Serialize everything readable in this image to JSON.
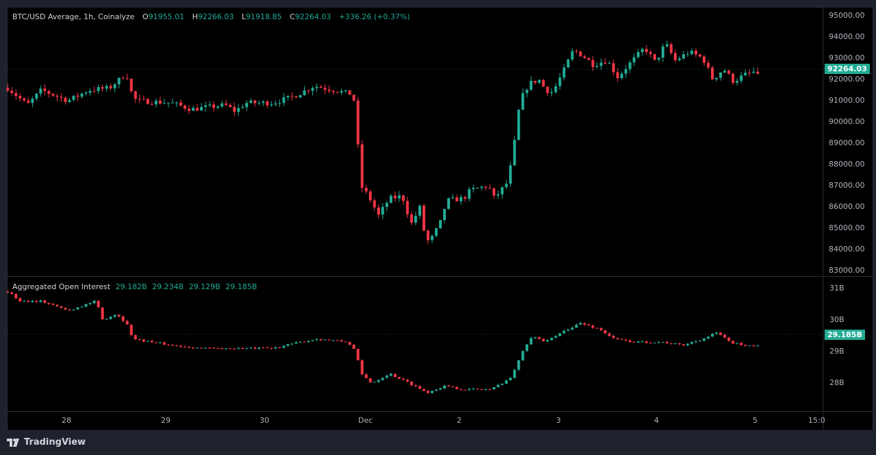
{
  "legend_main": {
    "symbol": "BTC/USD Average, 1h, Coinalyze",
    "o_label": "O",
    "o": "91955.01",
    "h_label": "H",
    "h": "92266.03",
    "l_label": "L",
    "l": "91918.85",
    "c_label": "C",
    "c": "92264.03",
    "change": "+336.26 (+0.37%)"
  },
  "legend_oi": {
    "title": "Aggregated Open Interest",
    "v1": "29.182B",
    "v2": "29.234B",
    "v3": "29.129B",
    "v4": "29.185B"
  },
  "price_axis": [
    "95000.00",
    "94000.00",
    "93000.00",
    "92000.00",
    "91000.00",
    "90000.00",
    "89000.00",
    "88000.00",
    "87000.00",
    "86000.00",
    "85000.00",
    "84000.00",
    "83000.00"
  ],
  "price_tag": "92264.03",
  "oi_axis": [
    "31B",
    "30B",
    "29B",
    "28B"
  ],
  "oi_tag": "29.185B",
  "time_axis": [
    "28",
    "29",
    "30",
    "Dec",
    "2",
    "3",
    "4",
    "5",
    "15:0"
  ],
  "brand": "TradingView",
  "colors": {
    "up": "#22ab94",
    "down": "#f23645",
    "bg": "#000000"
  },
  "chart_data": {
    "type": "candlestick",
    "interval": "1h",
    "price_ylim": [
      83000,
      95000
    ],
    "oi_ylim": [
      27.5,
      31.2
    ],
    "price_anchors_by_day": [
      [
        -0.58,
        91600
      ],
      [
        -0.38,
        90800
      ],
      [
        -0.24,
        91500
      ],
      [
        0.03,
        91000
      ],
      [
        0.24,
        91500
      ],
      [
        0.45,
        91600
      ],
      [
        0.55,
        92000
      ],
      [
        0.62,
        92300
      ],
      [
        0.66,
        91500
      ],
      [
        0.72,
        91000
      ],
      [
        1.07,
        90900
      ],
      [
        1.28,
        90600
      ],
      [
        1.62,
        90800
      ],
      [
        1.72,
        90500
      ],
      [
        1.83,
        90900
      ],
      [
        2.1,
        90900
      ],
      [
        2.31,
        91200
      ],
      [
        2.52,
        91700
      ],
      [
        2.72,
        91500
      ],
      [
        2.9,
        91300
      ],
      [
        2.93,
        90900
      ],
      [
        2.99,
        87000
      ],
      [
        3.07,
        86500
      ],
      [
        3.17,
        85600
      ],
      [
        3.28,
        86400
      ],
      [
        3.41,
        86500
      ],
      [
        3.5,
        85200
      ],
      [
        3.59,
        86000
      ],
      [
        3.62,
        85000
      ],
      [
        3.68,
        84300
      ],
      [
        3.79,
        85200
      ],
      [
        3.86,
        86300
      ],
      [
        4.03,
        86400
      ],
      [
        4.1,
        86800
      ],
      [
        4.28,
        87000
      ],
      [
        4.34,
        86400
      ],
      [
        4.48,
        87200
      ],
      [
        4.55,
        89200
      ],
      [
        4.6,
        91000
      ],
      [
        4.69,
        91800
      ],
      [
        4.79,
        92000
      ],
      [
        4.86,
        91500
      ],
      [
        4.93,
        91400
      ],
      [
        5.03,
        92300
      ],
      [
        5.14,
        93400
      ],
      [
        5.24,
        93100
      ],
      [
        5.34,
        92700
      ],
      [
        5.48,
        92900
      ],
      [
        5.59,
        92100
      ],
      [
        5.66,
        92500
      ],
      [
        5.76,
        93000
      ],
      [
        5.86,
        93500
      ],
      [
        5.97,
        92800
      ],
      [
        6.07,
        93700
      ],
      [
        6.17,
        92900
      ],
      [
        6.31,
        93300
      ],
      [
        6.45,
        93000
      ],
      [
        6.55,
        92000
      ],
      [
        6.66,
        92500
      ],
      [
        6.76,
        91900
      ],
      [
        6.86,
        92200
      ],
      [
        7.0,
        92400
      ],
      [
        7.02,
        92264
      ]
    ],
    "oi_anchors_by_day": [
      [
        -0.58,
        30.9
      ],
      [
        -0.45,
        30.6
      ],
      [
        -0.24,
        30.6
      ],
      [
        0.03,
        30.3
      ],
      [
        0.31,
        30.6
      ],
      [
        0.38,
        30.0
      ],
      [
        0.52,
        30.2
      ],
      [
        0.62,
        29.9
      ],
      [
        0.69,
        29.4
      ],
      [
        1.07,
        29.2
      ],
      [
        1.41,
        29.1
      ],
      [
        1.69,
        29.1
      ],
      [
        2.1,
        29.1
      ],
      [
        2.38,
        29.3
      ],
      [
        2.55,
        29.4
      ],
      [
        2.86,
        29.3
      ],
      [
        2.94,
        29.0
      ],
      [
        2.99,
        28.3
      ],
      [
        3.1,
        28.0
      ],
      [
        3.28,
        28.3
      ],
      [
        3.48,
        28.0
      ],
      [
        3.66,
        27.7
      ],
      [
        3.83,
        27.9
      ],
      [
        4.03,
        27.8
      ],
      [
        4.31,
        27.8
      ],
      [
        4.52,
        28.2
      ],
      [
        4.62,
        29.0
      ],
      [
        4.72,
        29.5
      ],
      [
        4.86,
        29.3
      ],
      [
        5.07,
        29.7
      ],
      [
        5.21,
        29.9
      ],
      [
        5.41,
        29.7
      ],
      [
        5.55,
        29.4
      ],
      [
        5.76,
        29.3
      ],
      [
        6.03,
        29.3
      ],
      [
        6.24,
        29.2
      ],
      [
        6.45,
        29.4
      ],
      [
        6.59,
        29.6
      ],
      [
        6.72,
        29.3
      ],
      [
        6.86,
        29.2
      ],
      [
        7.02,
        29.185
      ]
    ]
  }
}
